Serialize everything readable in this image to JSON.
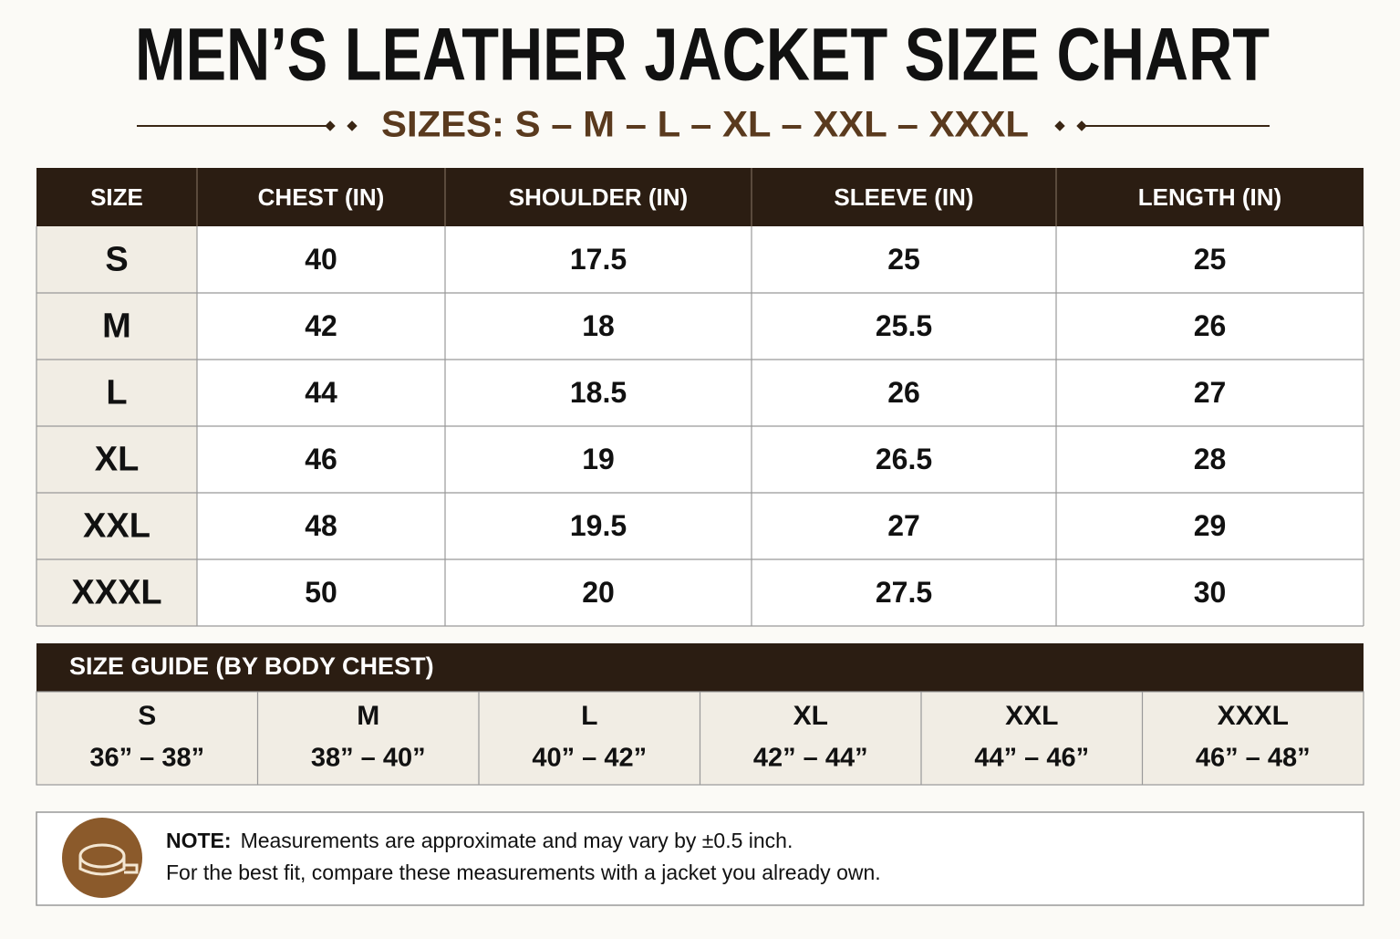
{
  "title": "MEN’S LEATHER JACKET SIZE CHART",
  "subtitle": "SIZES: S – M – L – XL – XXL – XXXL",
  "table": {
    "headers": [
      "SIZE",
      "CHEST (IN)",
      "SHOULDER (IN)",
      "SLEEVE (IN)",
      "LENGTH (IN)"
    ],
    "rows": [
      [
        "S",
        "40",
        "17.5",
        "25",
        "25"
      ],
      [
        "M",
        "42",
        "18",
        "25.5",
        "26"
      ],
      [
        "L",
        "44",
        "18.5",
        "26",
        "27"
      ],
      [
        "XL",
        "46",
        "19",
        "26.5",
        "28"
      ],
      [
        "XXL",
        "48",
        "19.5",
        "27",
        "29"
      ],
      [
        "XXXL",
        "50",
        "20",
        "27.5",
        "30"
      ]
    ]
  },
  "guide": {
    "title": "SIZE GUIDE (BY BODY CHEST)",
    "items": [
      {
        "size": "S",
        "range": "36” – 38”"
      },
      {
        "size": "M",
        "range": "38” – 40”"
      },
      {
        "size": "L",
        "range": "40” – 42”"
      },
      {
        "size": "XL",
        "range": "42” – 44”"
      },
      {
        "size": "XXL",
        "range": "44” – 46”"
      },
      {
        "size": "XXXL",
        "range": "46” – 48”"
      }
    ]
  },
  "note": {
    "label": "NOTE:",
    "lines": [
      "Measurements are approximate and may vary by ±0.5 inch.",
      "For the best fit, compare these measurements with a jacket you already own."
    ]
  }
}
